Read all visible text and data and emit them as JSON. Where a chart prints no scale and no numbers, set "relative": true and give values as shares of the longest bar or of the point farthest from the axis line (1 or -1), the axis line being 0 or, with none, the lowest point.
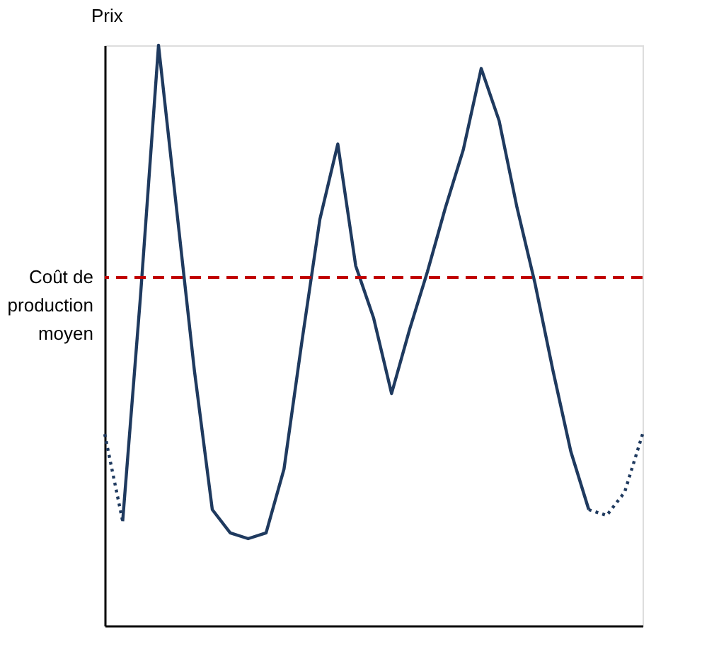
{
  "chart_data": {
    "type": "line",
    "relative": true,
    "ylabel": "Prix",
    "categories": [
      null,
      null,
      null,
      null,
      null,
      null,
      null,
      null,
      null,
      null,
      null,
      null,
      null,
      null,
      null,
      null,
      null,
      null,
      null,
      null,
      null,
      null,
      null,
      null,
      null,
      null,
      null,
      null,
      null,
      null,
      null
    ],
    "series": [
      {
        "color": "#1f3a5f",
        "line_style": "dotted",
        "values": [
          0.33,
          0.18,
          null,
          null,
          null,
          null,
          null,
          null,
          null,
          null,
          null,
          null,
          null,
          null,
          null,
          null,
          null,
          null,
          null,
          null,
          null,
          null,
          null,
          null,
          null,
          null,
          null,
          0.2,
          0.19,
          0.23,
          0.33
        ]
      },
      {
        "color": "#1f3a5f",
        "line_style": "solid",
        "values": [
          null,
          0.18,
          0.57,
          1.0,
          0.72,
          0.44,
          0.2,
          0.16,
          0.15,
          0.16,
          0.27,
          0.49,
          0.7,
          0.83,
          0.62,
          0.53,
          0.4,
          0.51,
          0.61,
          0.72,
          0.82,
          0.96,
          0.87,
          0.72,
          0.59,
          0.44,
          0.3,
          0.2,
          null,
          null,
          null
        ]
      }
    ],
    "ref_lines": [
      {
        "axis": "y",
        "value": 0.6,
        "label": "Coût de\nproduction\nmoyen",
        "color": "#c00000",
        "line_style": "dashed"
      }
    ],
    "grid": false,
    "marker": "none",
    "tick_labels": false
  }
}
